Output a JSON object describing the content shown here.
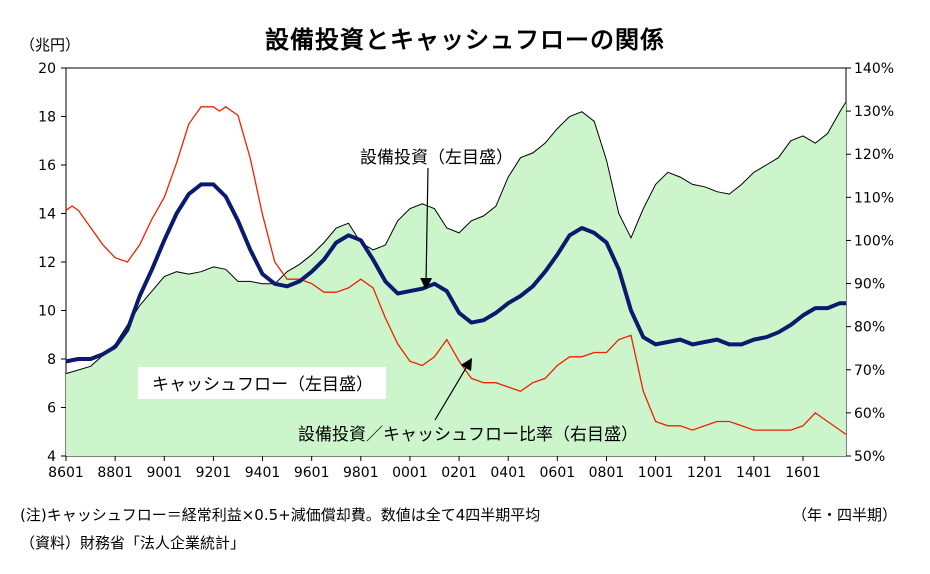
{
  "title": "設備投資とキャッシュフローの関係",
  "left_unit": "（兆円）",
  "note": "(注)キャッシュフロー＝経常利益×0.5+減価償却費。数値は全て4四半期平均",
  "x_unit": "（年・四半期）",
  "source": "（資料）財務省「法人企業統計」",
  "chart_data": {
    "type": "line",
    "ylim": [
      4,
      20
    ],
    "y_ticks": [
      "4",
      "6",
      "8",
      "10",
      "12",
      "14",
      "16",
      "18",
      "20"
    ],
    "y2lim": [
      50,
      140
    ],
    "y2_ticks": [
      "50%",
      "60%",
      "70%",
      "80%",
      "90%",
      "100%",
      "110%",
      "120%",
      "130%",
      "140%"
    ],
    "x_ticks": [
      "8601",
      "8801",
      "9001",
      "9201",
      "9401",
      "9601",
      "9801",
      "0001",
      "0201",
      "0401",
      "0601",
      "0801",
      "1001",
      "1201",
      "1401",
      "1601"
    ],
    "xlim": [
      1986.0,
      2017.75
    ],
    "colors": {
      "cashflow_fill": "#ccf5cc",
      "capex": "#0a1a6e",
      "ratio": "#ee2200"
    },
    "series": [
      {
        "name": "キャッシュフロー（左目盛）",
        "axis": "left",
        "style": "area",
        "points": [
          [
            1986.0,
            7.4
          ],
          [
            1987.0,
            7.7
          ],
          [
            1988.0,
            8.6
          ],
          [
            1988.5,
            9.4
          ],
          [
            1989.0,
            10.2
          ],
          [
            1989.5,
            10.8
          ],
          [
            1990.0,
            11.4
          ],
          [
            1990.5,
            11.6
          ],
          [
            1991.0,
            11.5
          ],
          [
            1991.5,
            11.6
          ],
          [
            1992.0,
            11.8
          ],
          [
            1992.5,
            11.7
          ],
          [
            1993.0,
            11.2
          ],
          [
            1993.5,
            11.2
          ],
          [
            1994.0,
            11.1
          ],
          [
            1994.5,
            11.1
          ],
          [
            1995.0,
            11.6
          ],
          [
            1995.5,
            11.9
          ],
          [
            1996.0,
            12.3
          ],
          [
            1996.5,
            12.8
          ],
          [
            1997.0,
            13.4
          ],
          [
            1997.5,
            13.6
          ],
          [
            1998.0,
            12.8
          ],
          [
            1998.5,
            12.5
          ],
          [
            1999.0,
            12.7
          ],
          [
            1999.5,
            13.7
          ],
          [
            2000.0,
            14.2
          ],
          [
            2000.5,
            14.4
          ],
          [
            2001.0,
            14.2
          ],
          [
            2001.5,
            13.4
          ],
          [
            2002.0,
            13.2
          ],
          [
            2002.5,
            13.7
          ],
          [
            2003.0,
            13.9
          ],
          [
            2003.5,
            14.3
          ],
          [
            2004.0,
            15.5
          ],
          [
            2004.5,
            16.3
          ],
          [
            2005.0,
            16.5
          ],
          [
            2005.5,
            16.9
          ],
          [
            2006.0,
            17.5
          ],
          [
            2006.5,
            18.0
          ],
          [
            2007.0,
            18.2
          ],
          [
            2007.5,
            17.8
          ],
          [
            2008.0,
            16.2
          ],
          [
            2008.5,
            14.0
          ],
          [
            2009.0,
            13.0
          ],
          [
            2009.5,
            14.2
          ],
          [
            2010.0,
            15.2
          ],
          [
            2010.5,
            15.7
          ],
          [
            2011.0,
            15.5
          ],
          [
            2011.5,
            15.2
          ],
          [
            2012.0,
            15.1
          ],
          [
            2012.5,
            14.9
          ],
          [
            2013.0,
            14.8
          ],
          [
            2013.5,
            15.2
          ],
          [
            2014.0,
            15.7
          ],
          [
            2014.5,
            16.0
          ],
          [
            2015.0,
            16.3
          ],
          [
            2015.5,
            17.0
          ],
          [
            2016.0,
            17.2
          ],
          [
            2016.5,
            16.9
          ],
          [
            2017.0,
            17.3
          ],
          [
            2017.5,
            18.2
          ],
          [
            2017.75,
            18.6
          ]
        ]
      },
      {
        "name": "設備投資（左目盛）",
        "axis": "left",
        "style": "line",
        "points": [
          [
            1986.0,
            7.9
          ],
          [
            1986.5,
            8.0
          ],
          [
            1987.0,
            8.0
          ],
          [
            1987.5,
            8.2
          ],
          [
            1988.0,
            8.5
          ],
          [
            1988.5,
            9.2
          ],
          [
            1989.0,
            10.6
          ],
          [
            1989.5,
            11.7
          ],
          [
            1990.0,
            12.9
          ],
          [
            1990.5,
            14.0
          ],
          [
            1991.0,
            14.8
          ],
          [
            1991.5,
            15.2
          ],
          [
            1992.0,
            15.2
          ],
          [
            1992.5,
            14.7
          ],
          [
            1993.0,
            13.7
          ],
          [
            1993.5,
            12.5
          ],
          [
            1994.0,
            11.5
          ],
          [
            1994.5,
            11.1
          ],
          [
            1995.0,
            11.0
          ],
          [
            1995.5,
            11.2
          ],
          [
            1996.0,
            11.6
          ],
          [
            1996.5,
            12.1
          ],
          [
            1997.0,
            12.8
          ],
          [
            1997.5,
            13.1
          ],
          [
            1998.0,
            12.9
          ],
          [
            1998.5,
            12.1
          ],
          [
            1999.0,
            11.2
          ],
          [
            1999.5,
            10.7
          ],
          [
            2000.0,
            10.8
          ],
          [
            2000.5,
            10.9
          ],
          [
            2001.0,
            11.1
          ],
          [
            2001.5,
            10.8
          ],
          [
            2002.0,
            9.9
          ],
          [
            2002.5,
            9.5
          ],
          [
            2003.0,
            9.6
          ],
          [
            2003.5,
            9.9
          ],
          [
            2004.0,
            10.3
          ],
          [
            2004.5,
            10.6
          ],
          [
            2005.0,
            11.0
          ],
          [
            2005.5,
            11.6
          ],
          [
            2006.0,
            12.3
          ],
          [
            2006.5,
            13.1
          ],
          [
            2007.0,
            13.4
          ],
          [
            2007.5,
            13.2
          ],
          [
            2008.0,
            12.8
          ],
          [
            2008.5,
            11.7
          ],
          [
            2009.0,
            10.0
          ],
          [
            2009.5,
            8.9
          ],
          [
            2010.0,
            8.6
          ],
          [
            2010.5,
            8.7
          ],
          [
            2011.0,
            8.8
          ],
          [
            2011.5,
            8.6
          ],
          [
            2012.0,
            8.7
          ],
          [
            2012.5,
            8.8
          ],
          [
            2013.0,
            8.6
          ],
          [
            2013.5,
            8.6
          ],
          [
            2014.0,
            8.8
          ],
          [
            2014.5,
            8.9
          ],
          [
            2015.0,
            9.1
          ],
          [
            2015.5,
            9.4
          ],
          [
            2016.0,
            9.8
          ],
          [
            2016.5,
            10.1
          ],
          [
            2017.0,
            10.1
          ],
          [
            2017.5,
            10.3
          ],
          [
            2017.75,
            10.3
          ]
        ]
      },
      {
        "name": "設備投資／キャッシュフロー比率（右目盛）",
        "axis": "right",
        "style": "line",
        "points": [
          [
            1986.0,
            107
          ],
          [
            1986.25,
            108
          ],
          [
            1986.5,
            107
          ],
          [
            1987.0,
            103
          ],
          [
            1987.5,
            99
          ],
          [
            1988.0,
            96
          ],
          [
            1988.5,
            95
          ],
          [
            1989.0,
            99
          ],
          [
            1989.5,
            105
          ],
          [
            1990.0,
            110
          ],
          [
            1990.5,
            118
          ],
          [
            1991.0,
            127
          ],
          [
            1991.5,
            131
          ],
          [
            1992.0,
            131
          ],
          [
            1992.25,
            130
          ],
          [
            1992.5,
            131
          ],
          [
            1993.0,
            129
          ],
          [
            1993.5,
            119
          ],
          [
            1994.0,
            106
          ],
          [
            1994.5,
            95
          ],
          [
            1995.0,
            91
          ],
          [
            1995.5,
            91
          ],
          [
            1996.0,
            90
          ],
          [
            1996.5,
            88
          ],
          [
            1997.0,
            88
          ],
          [
            1997.5,
            89
          ],
          [
            1998.0,
            91
          ],
          [
            1998.5,
            89
          ],
          [
            1999.0,
            82
          ],
          [
            1999.5,
            76
          ],
          [
            2000.0,
            72
          ],
          [
            2000.5,
            71
          ],
          [
            2001.0,
            73
          ],
          [
            2001.5,
            77
          ],
          [
            2002.0,
            72
          ],
          [
            2002.5,
            68
          ],
          [
            2003.0,
            67
          ],
          [
            2003.5,
            67
          ],
          [
            2004.0,
            66
          ],
          [
            2004.5,
            65
          ],
          [
            2005.0,
            67
          ],
          [
            2005.5,
            68
          ],
          [
            2006.0,
            71
          ],
          [
            2006.5,
            73
          ],
          [
            2007.0,
            73
          ],
          [
            2007.5,
            74
          ],
          [
            2008.0,
            74
          ],
          [
            2008.5,
            77
          ],
          [
            2009.0,
            78
          ],
          [
            2009.5,
            65
          ],
          [
            2010.0,
            58
          ],
          [
            2010.5,
            57
          ],
          [
            2011.0,
            57
          ],
          [
            2011.5,
            56
          ],
          [
            2012.0,
            57
          ],
          [
            2012.5,
            58
          ],
          [
            2013.0,
            58
          ],
          [
            2013.5,
            57
          ],
          [
            2014.0,
            56
          ],
          [
            2014.5,
            56
          ],
          [
            2015.0,
            56
          ],
          [
            2015.5,
            56
          ],
          [
            2016.0,
            57
          ],
          [
            2016.5,
            60
          ],
          [
            2017.0,
            58
          ],
          [
            2017.5,
            56
          ],
          [
            2017.75,
            55
          ]
        ]
      }
    ],
    "annotations": [
      {
        "text": "設備投資（左目盛）"
      },
      {
        "text": "キャッシュフロー（左目盛）"
      },
      {
        "text": "設備投資／キャッシュフロー比率（右目盛）"
      }
    ]
  }
}
